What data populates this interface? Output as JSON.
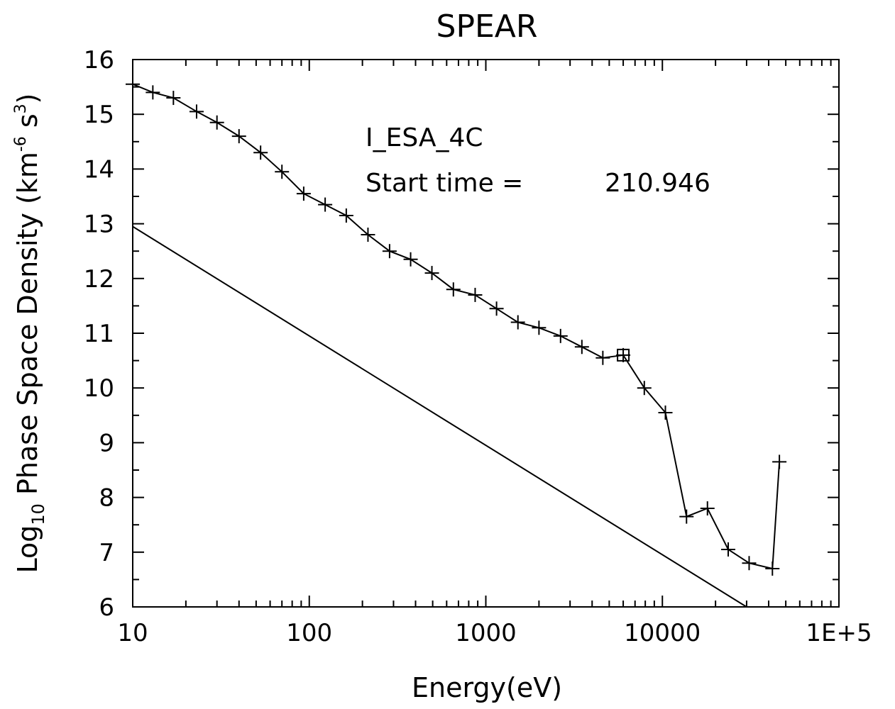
{
  "chart_data": {
    "type": "line",
    "title": "SPEAR",
    "xlabel": "Energy(eV)",
    "ylabel": {
      "prefix": "Log",
      "prefix_sub": "10",
      "main": " Phase Space Density (km",
      "exp1": "-6",
      "mid": " s",
      "exp2": "3",
      "end": ")"
    },
    "x_scale": "log",
    "xlim": [
      10,
      100000
    ],
    "ylim": [
      6,
      16
    ],
    "x_tick_labels": [
      {
        "value": 10,
        "label": "10"
      },
      {
        "value": 100,
        "label": "100"
      },
      {
        "value": 1000,
        "label": "1000"
      },
      {
        "value": 10000,
        "label": "10000"
      },
      {
        "value": 100000,
        "label": "1E+5"
      }
    ],
    "y_tick_labels": [
      "6",
      "7",
      "8",
      "9",
      "10",
      "11",
      "12",
      "13",
      "14",
      "15",
      "16"
    ],
    "grid": false,
    "annotations": {
      "instrument": "I_ESA_4C",
      "start_label": "Start time =",
      "start_value": "210.946"
    },
    "series": [
      {
        "style": "line-with-plus-markers",
        "x": [
          10,
          13,
          17,
          23,
          30,
          40,
          53,
          70,
          93,
          123,
          162,
          215,
          285,
          375,
          495,
          655,
          870,
          1150,
          1520,
          2000,
          2650,
          3500,
          4600,
          6000,
          7900,
          10400,
          13700,
          18000,
          23600,
          31000,
          42000,
          46000
        ],
        "y": [
          15.55,
          15.4,
          15.3,
          15.05,
          14.85,
          14.6,
          14.3,
          13.95,
          13.55,
          13.35,
          13.15,
          12.8,
          12.5,
          12.35,
          12.1,
          11.8,
          11.7,
          11.45,
          11.2,
          11.1,
          10.95,
          10.75,
          10.55,
          10.6,
          10.0,
          9.55,
          7.65,
          7.8,
          7.05,
          6.8,
          6.7,
          8.65
        ],
        "highlight_point": {
          "x": 6000,
          "y": 10.6,
          "marker": "boxed-plus"
        }
      },
      {
        "style": "line",
        "x": [
          10,
          30000
        ],
        "y": [
          12.95,
          6.0
        ]
      }
    ]
  }
}
